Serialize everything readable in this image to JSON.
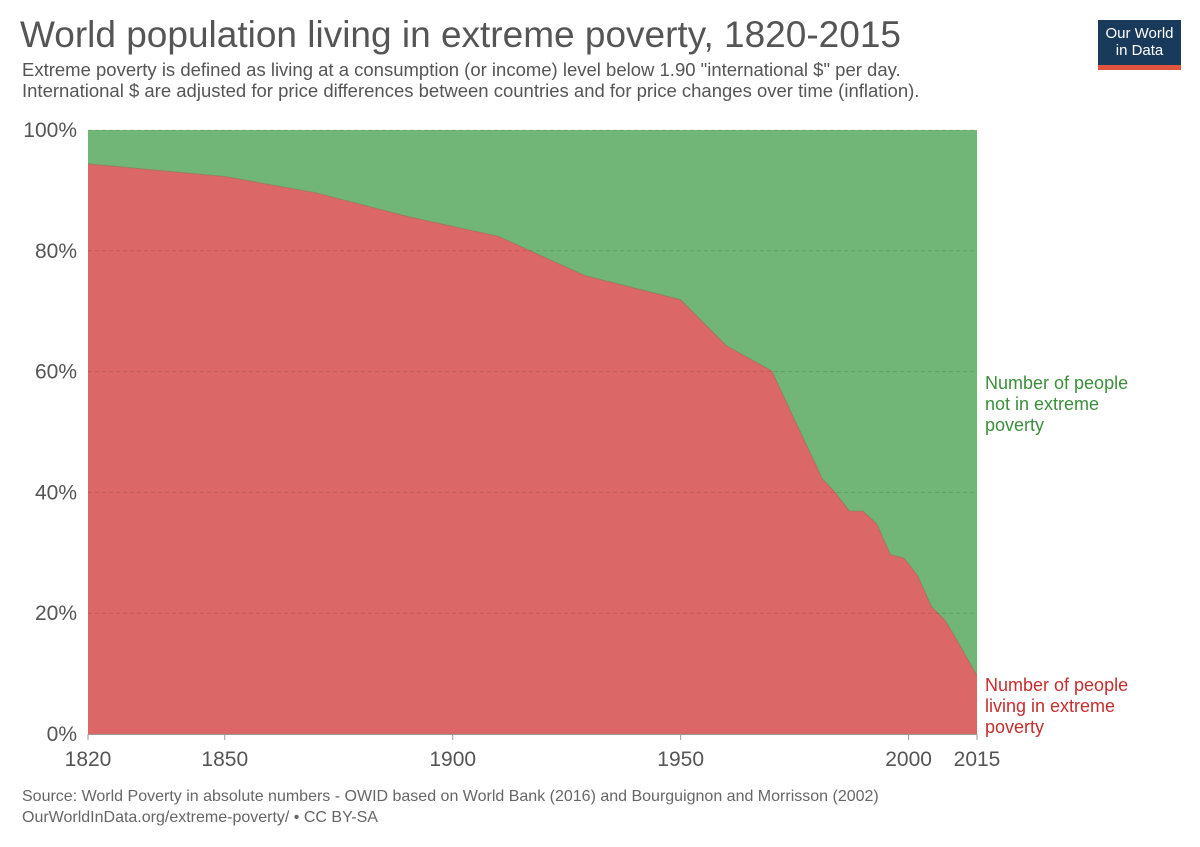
{
  "title": "World population living in extreme poverty, 1820-2015",
  "subtitle": [
    "Extreme poverty is defined as living at a consumption (or income) level below 1.90 \"international $\" per day.",
    "International $ are adjusted for price differences between countries and for price changes over time (inflation)."
  ],
  "logo": {
    "line1": "Our World",
    "line2": "in Data"
  },
  "source": {
    "line1": "Source: World Poverty in absolute numbers - OWID based on World Bank (2016) and Bourguignon and Morrisson (2002)",
    "line2": "OurWorldInData.org/extreme-poverty/ • CC BY-SA"
  },
  "colors": {
    "poverty": "#dc6767",
    "not_poverty": "#71b676",
    "poverty_label": "#c62d2d",
    "not_poverty_label": "#3c8e3c",
    "grid": "#d8d8d8",
    "text": "#555555"
  },
  "chart_data": {
    "type": "area",
    "stacked": true,
    "title": "World population living in extreme poverty, 1820-2015",
    "xlabel": "",
    "ylabel": "",
    "xlim": [
      1820,
      2015
    ],
    "ylim": [
      0,
      100
    ],
    "x_ticks": [
      "1820",
      "1850",
      "1900",
      "1950",
      "2000",
      "2015"
    ],
    "y_ticks": [
      "0%",
      "20%",
      "40%",
      "60%",
      "80%",
      "100%"
    ],
    "x": [
      1820,
      1850,
      1870,
      1890,
      1910,
      1929,
      1950,
      1960,
      1970,
      1975,
      1980,
      1981,
      1984,
      1987,
      1990,
      1993,
      1996,
      1999,
      2002,
      2005,
      2008,
      2010,
      2012,
      2015
    ],
    "series": [
      {
        "name": "Number of people living in extreme poverty",
        "label_lines": [
          "Number of people",
          "living in extreme",
          "poverty"
        ],
        "values": [
          94.4,
          92.3,
          89.6,
          85.7,
          82.4,
          75.9,
          71.9,
          64.3,
          60.1,
          52.0,
          44.0,
          42.3,
          39.9,
          36.9,
          36.9,
          34.8,
          29.7,
          29.1,
          26.2,
          21.1,
          18.8,
          16.3,
          13.7,
          9.6
        ]
      },
      {
        "name": "Number of people not in extreme poverty",
        "label_lines": [
          "Number of people",
          "not in extreme",
          "poverty"
        ],
        "values": [
          5.6,
          7.7,
          10.4,
          14.3,
          17.6,
          24.1,
          28.1,
          35.7,
          39.9,
          48.0,
          56.0,
          57.7,
          60.1,
          63.1,
          63.1,
          65.2,
          70.3,
          70.9,
          73.8,
          78.9,
          81.2,
          83.7,
          86.3,
          90.4
        ]
      }
    ]
  }
}
